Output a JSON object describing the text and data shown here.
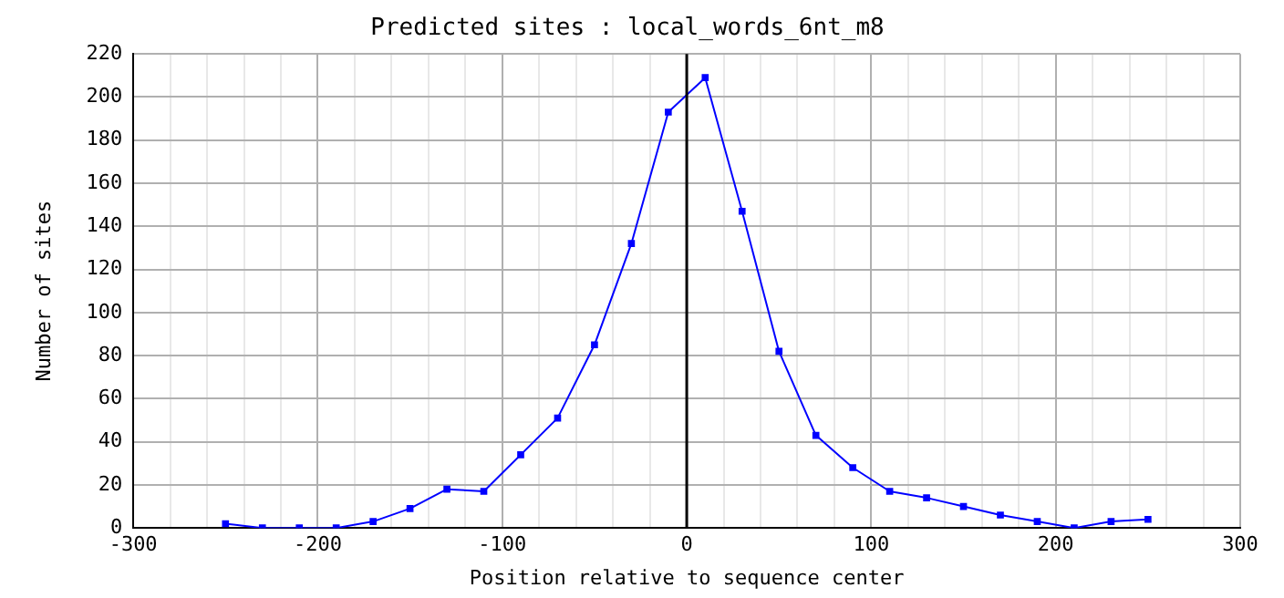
{
  "chart_data": {
    "type": "line",
    "title": "Predicted sites : local_words_6nt_m8",
    "xlabel": "Position relative to sequence center",
    "ylabel": "Number of sites",
    "x": [
      -250,
      -230,
      -210,
      -190,
      -170,
      -150,
      -130,
      -110,
      -90,
      -70,
      -50,
      -30,
      -10,
      10,
      30,
      50,
      70,
      90,
      110,
      130,
      150,
      170,
      190,
      210,
      230,
      250
    ],
    "series": [
      {
        "color": "#0000ff",
        "values": [
          2,
          0,
          0,
          0,
          3,
          9,
          18,
          17,
          34,
          51,
          85,
          132,
          193,
          209,
          147,
          82,
          43,
          28,
          17,
          14,
          10,
          6,
          3,
          0,
          3,
          4
        ]
      }
    ],
    "xlim": [
      -300,
      300
    ],
    "xticks": [
      -300,
      {
        "value": -280,
        "label": null
      },
      {
        "value": -260,
        "label": null
      },
      {
        "value": -240,
        "label": null
      },
      {
        "value": -220,
        "label": null
      },
      -200,
      {
        "value": -180,
        "label": null
      },
      {
        "value": -160,
        "label": null
      },
      {
        "value": -140,
        "label": null
      },
      {
        "value": -120,
        "label": null
      },
      -100,
      {
        "value": -80,
        "label": null
      },
      {
        "value": -60,
        "label": null
      },
      {
        "value": -40,
        "label": null
      },
      {
        "value": -20,
        "label": null
      },
      0,
      {
        "value": 20,
        "label": null
      },
      {
        "value": 40,
        "label": null
      },
      {
        "value": 60,
        "label": null
      },
      {
        "value": 80,
        "label": null
      },
      100,
      {
        "value": 120,
        "label": null
      },
      {
        "value": 140,
        "label": null
      },
      {
        "value": 160,
        "label": null
      },
      {
        "value": 180,
        "label": null
      },
      200,
      {
        "value": 220,
        "label": null
      },
      {
        "value": 240,
        "label": null
      },
      {
        "value": 260,
        "label": null
      },
      {
        "value": 280,
        "label": null
      },
      300
    ],
    "ylim": [
      0,
      220
    ],
    "yticks": [
      0,
      20,
      40,
      60,
      80,
      100,
      120,
      140,
      160,
      180,
      200,
      220
    ],
    "ref_lines": [
      {
        "axis": "x",
        "value": 0,
        "color": "#000000"
      }
    ],
    "grid": true,
    "legend": false,
    "marker": "square",
    "line_style": "solid"
  }
}
